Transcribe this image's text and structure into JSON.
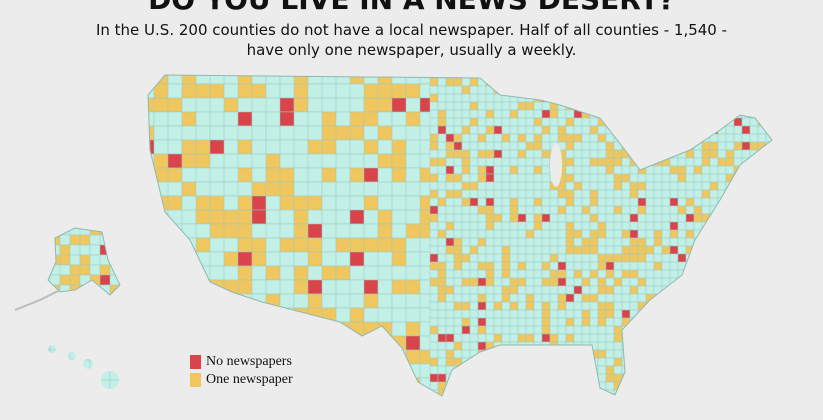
{
  "header": {
    "title": "DO YOU LIVE IN A NEWS DESERT?",
    "subtitle_lines": [
      "In the U.S. 200 counties do not have a local newspaper.  Half of all counties - 1,540 -",
      "have only one newspaper, usually a weekly."
    ]
  },
  "legend": [
    {
      "label": "No newspapers",
      "color": "#d9434a"
    },
    {
      "label": "One newspaper",
      "color": "#f0c75e"
    }
  ]
}
